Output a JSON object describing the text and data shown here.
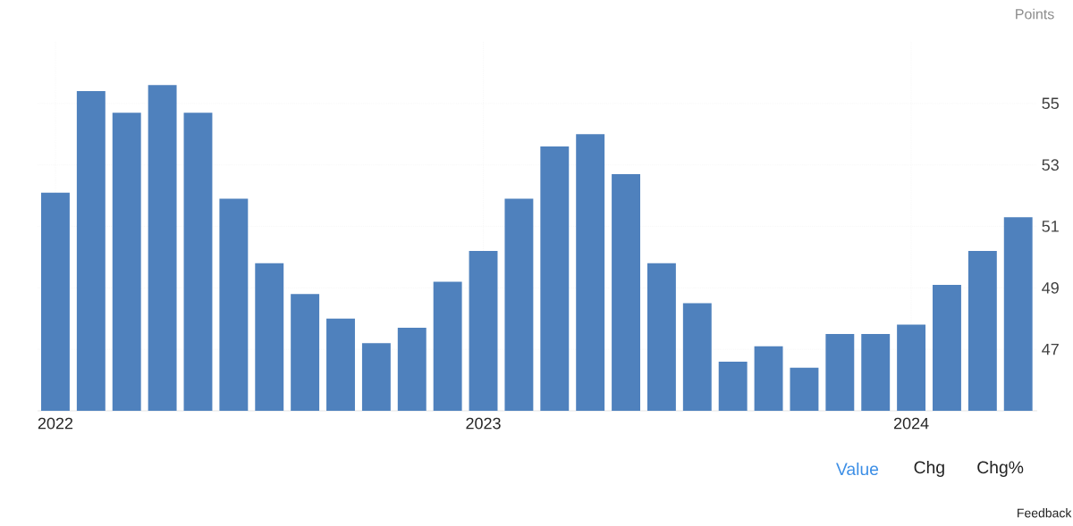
{
  "chart_data": {
    "type": "bar",
    "ylabel": "Points",
    "x": [
      "2022-01",
      "2022-02",
      "2022-03",
      "2022-04",
      "2022-05",
      "2022-06",
      "2022-07",
      "2022-08",
      "2022-09",
      "2022-10",
      "2022-11",
      "2022-12",
      "2023-01",
      "2023-02",
      "2023-03",
      "2023-04",
      "2023-05",
      "2023-06",
      "2023-07",
      "2023-08",
      "2023-09",
      "2023-10",
      "2023-11",
      "2023-12",
      "2024-01",
      "2024-02",
      "2024-03",
      "2024-04"
    ],
    "values": [
      52.1,
      55.4,
      54.7,
      55.6,
      54.7,
      51.9,
      49.8,
      48.8,
      48.0,
      47.2,
      47.7,
      49.2,
      50.2,
      51.9,
      53.6,
      54.0,
      52.7,
      49.8,
      48.5,
      46.6,
      47.1,
      46.4,
      47.5,
      47.5,
      47.8,
      49.1,
      50.2,
      51.3
    ],
    "color": "#4f81bd",
    "xlim": [
      "2021-12-16",
      "2024-04-17"
    ],
    "ylim": [
      45,
      57
    ],
    "yticks": [
      47,
      49,
      51,
      53,
      55
    ],
    "xticks": [
      {
        "value": "2022-01",
        "label": "2022"
      },
      {
        "value": "2023-01",
        "label": "2023"
      },
      {
        "value": "2024-01",
        "label": "2024"
      }
    ],
    "grid": true,
    "annotations": [
      "Value",
      "Chg",
      "Chg%",
      "Feedback"
    ]
  }
}
